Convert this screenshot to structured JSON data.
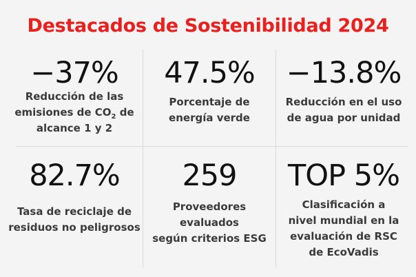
{
  "page": {
    "title": "Destacados de Sostenibilidad 2024"
  },
  "highlights": [
    {
      "value": "−37%",
      "description_before_sub": "Reducción de las\nemisiones de CO",
      "description_sub": "2",
      "description_after_sub": " de\nalcance 1 y 2"
    },
    {
      "value": "47.5%",
      "description": "Porcentaje de\nenergía verde"
    },
    {
      "value": "−13.8%",
      "description": "Reducción en el uso\nde agua por unidad"
    },
    {
      "value": "82.7%",
      "description": "Tasa de reciclaje de\nresiduos no peligrosos"
    },
    {
      "value": "259",
      "description": "Proveedores\nevaluados\nsegún criterios ESG"
    },
    {
      "value": "TOP 5%",
      "description": "Clasificación a\nnivel mundial en la\nevaluación de RSC\nde EcoVadis"
    }
  ],
  "colors": {
    "title": "#e8201e",
    "background": "#f4f4f4",
    "value_text": "#111111",
    "description_text": "#3a3a3a",
    "divider": "#d9d9d9"
  }
}
